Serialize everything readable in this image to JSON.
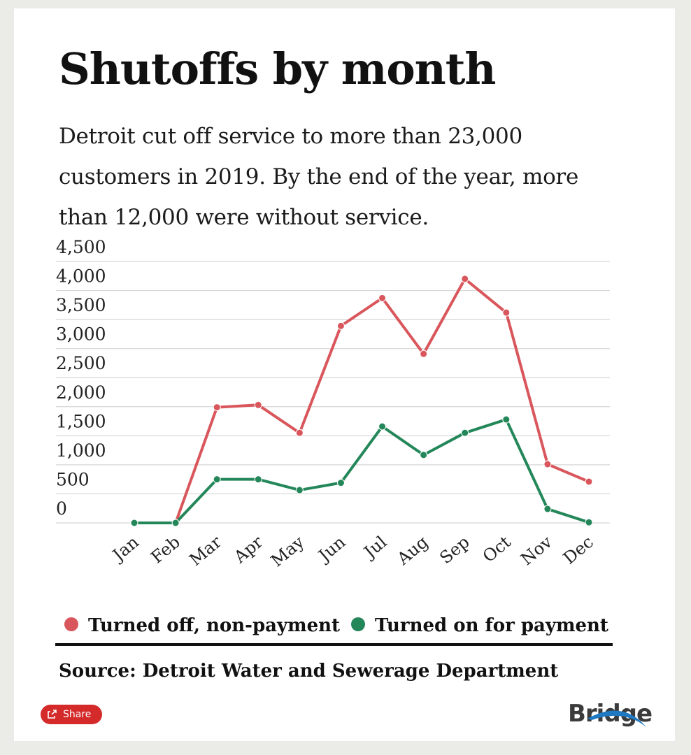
{
  "chart_data": {
    "type": "line",
    "title": "Shutoffs by month",
    "subtitle": "Detroit cut off service to more than 23,000 customers in 2019. By the end of the year, more than 12,000 were without service.",
    "categories": [
      "Jan",
      "Feb",
      "Mar",
      "Apr",
      "May",
      "Jun",
      "Jul",
      "Aug",
      "Sep",
      "Oct",
      "Nov",
      "Dec"
    ],
    "series": [
      {
        "name": "Turned off, non-payment",
        "color": "#d9575c",
        "values": [
          0,
          0,
          1990,
          2030,
          1550,
          3390,
          3870,
          2910,
          4200,
          3620,
          1010,
          710
        ]
      },
      {
        "name": "Turned on for payment",
        "color": "#24875a",
        "values": [
          0,
          0,
          750,
          750,
          565,
          690,
          1660,
          1170,
          1550,
          1780,
          240,
          10
        ]
      }
    ],
    "ylim": [
      0,
      4500
    ],
    "yticks": [
      0,
      500,
      {
        "value": 1000,
        "label": "1,000"
      },
      {
        "value": 1500,
        "label": "1,500"
      },
      {
        "value": 2000,
        "label": "2,000"
      },
      {
        "value": 2500,
        "label": "2,500"
      },
      {
        "value": 3000,
        "label": "3,000"
      },
      {
        "value": 3500,
        "label": "3,500"
      },
      {
        "value": 4000,
        "label": "4,000"
      },
      {
        "value": 4500,
        "label": "4,500"
      }
    ],
    "grid": true,
    "legend": "bottom",
    "source": "Source: Detroit Water and Sewerage Department"
  },
  "share": "Share",
  "brand": "Bridge"
}
